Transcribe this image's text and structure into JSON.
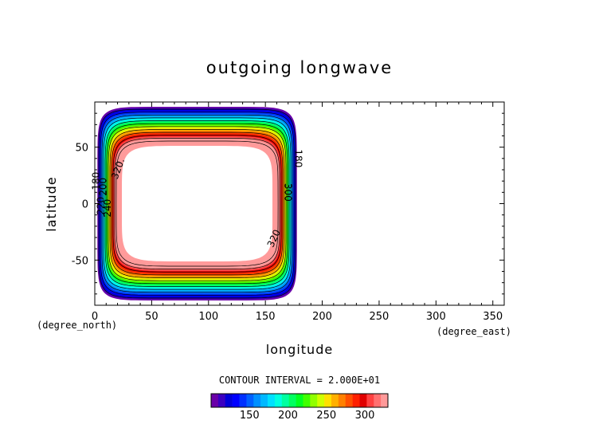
{
  "chart_data": {
    "type": "contour",
    "title": "outgoing longwave",
    "xlabel": "longitude",
    "ylabel": "latitude",
    "x_unit": "(degree_east)",
    "y_unit": "(degree_north)",
    "xlim": [
      0,
      360
    ],
    "ylim": [
      -90,
      90
    ],
    "xticks": [
      0,
      50,
      100,
      150,
      200,
      250,
      300,
      350
    ],
    "yticks": [
      -50,
      0,
      50
    ],
    "data_lon_range": [
      0,
      180
    ],
    "contour_interval_text": "CONTOUR INTERVAL = 2.000E+01",
    "contour_levels": [
      100,
      120,
      140,
      160,
      180,
      200,
      220,
      240,
      260,
      280,
      300,
      320
    ],
    "contour_labels": [
      {
        "text": "180",
        "lon": 4,
        "lat": 20,
        "rot": -90
      },
      {
        "text": "200",
        "lon": 10,
        "lat": 15,
        "rot": -90
      },
      {
        "text": "320.",
        "lon": 23,
        "lat": 30,
        "rot": -70
      },
      {
        "text": "220",
        "lon": 8,
        "lat": -2,
        "rot": -90
      },
      {
        "text": "240",
        "lon": 14,
        "lat": -4,
        "rot": -90
      },
      {
        "text": "180",
        "lon": 176,
        "lat": 40,
        "rot": 90
      },
      {
        "text": "300",
        "lon": 167,
        "lat": 10,
        "rot": 90
      },
      {
        "text": "320",
        "lon": 160,
        "lat": -32,
        "rot": -65
      }
    ],
    "colorbar": {
      "ticks": [
        150,
        200,
        250,
        300
      ],
      "min": 100,
      "max": 330,
      "colors": [
        "#6a00a8",
        "#3b00c0",
        "#0000d8",
        "#0000ff",
        "#0030ff",
        "#0060ff",
        "#0090ff",
        "#00b8ff",
        "#00e0ff",
        "#00ffe0",
        "#00ffa0",
        "#00ff60",
        "#00ff20",
        "#40ff00",
        "#90ff00",
        "#d0ff00",
        "#ffe000",
        "#ffb000",
        "#ff8000",
        "#ff5000",
        "#ff2000",
        "#e00000",
        "#ff4040",
        "#ff7070",
        "#ff9a9a"
      ]
    }
  }
}
